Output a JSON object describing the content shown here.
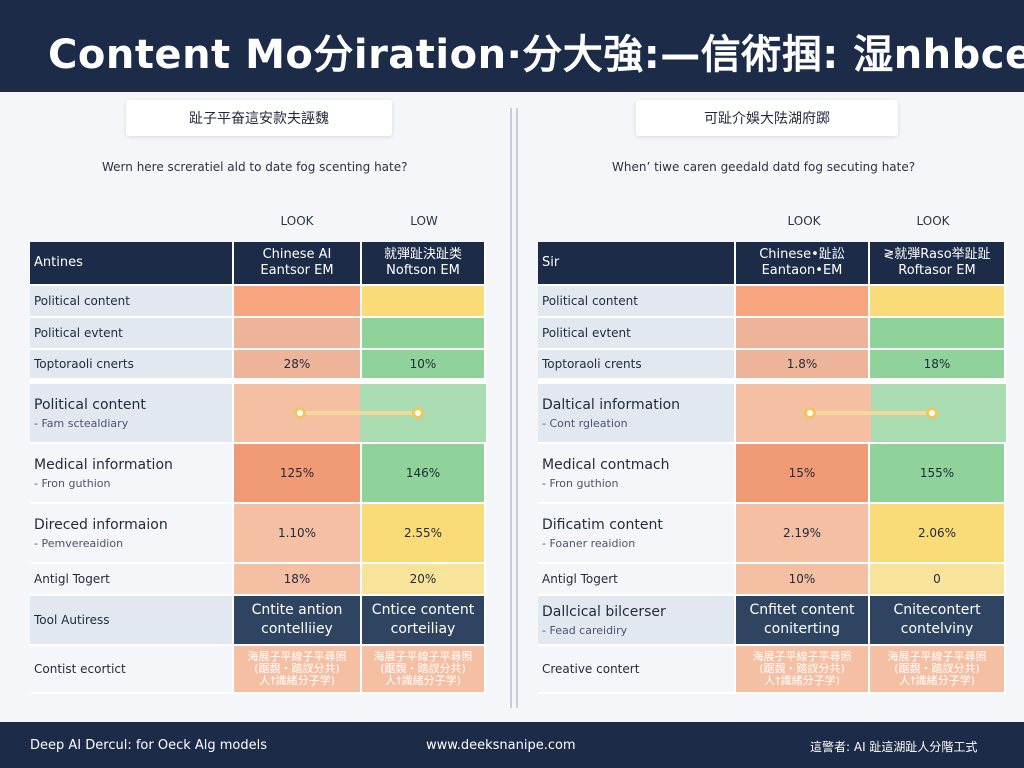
{
  "header": {
    "title": "Content Mo分iration·分大強:—信術掴: 湿nhbce"
  },
  "left": {
    "badge": "趾子平奋這安款夫誣魏",
    "question": "Wern here screratiel ald to date fog scenting hate?",
    "col_headers": [
      "LOOK",
      "LOW"
    ],
    "table_headers": [
      "Antines",
      "Chinese AI\nEantsor EM",
      "就弾趾決趾类\nNoftson EM"
    ],
    "rows": [
      {
        "label": "Political content",
        "sub": "",
        "v1": "",
        "v2": ""
      },
      {
        "label": "Political evtent",
        "sub": "",
        "v1": "",
        "v2": ""
      },
      {
        "label": "Toptoraoli cnerts",
        "sub": "",
        "v1": "28%",
        "v2": "10%"
      },
      {
        "label": "Political content",
        "sub": "- Fam sctealdiary",
        "v1": "",
        "v2": ""
      },
      {
        "label": "Medical information",
        "sub": "- Fron guthion",
        "v1": "125%",
        "v2": "146%"
      },
      {
        "label": "Direced informaion",
        "sub": "- Pemvereaidion",
        "v1": "1.10%",
        "v2": "2.55%"
      },
      {
        "label": "Antigl Togert",
        "sub": "",
        "v1": "18%",
        "v2": "20%"
      },
      {
        "label": "Tool Autiress",
        "sub": "",
        "v1": "Cntite antion\ncontelliiey",
        "v2": "Cntice content\ncorteiliay"
      },
      {
        "label": "Contist ecortict",
        "sub": "",
        "v1": "海展子平線子平尋照\n(踞覣・踏訍分共)\n人†識緒分子学)",
        "v2": "海展子平線子平尋照\n(踞覣・踏訍分共)\n人†識緒分子学)"
      }
    ]
  },
  "right": {
    "badge": "可趾介娛大阹湖府踯",
    "question": "When’ tiwe caren geedald datd fog secuting hate?",
    "col_headers": [
      "LOOK",
      "LOOK"
    ],
    "table_headers": [
      "Sir",
      "Chinese•趾訟\nEantaon•EM",
      "≷就弾Raso举趾趾\nRoftasor EM"
    ],
    "rows": [
      {
        "label": "Political content",
        "sub": "",
        "v1": "",
        "v2": ""
      },
      {
        "label": "Political evtent",
        "sub": "",
        "v1": "",
        "v2": ""
      },
      {
        "label": "Toptoraoli crents",
        "sub": "",
        "v1": "1.8%",
        "v2": "18%"
      },
      {
        "label": "Daltical information",
        "sub": "- Cont rgleation",
        "v1": "",
        "v2": ""
      },
      {
        "label": "Medical contmach",
        "sub": "- Fron guthion",
        "v1": "15%",
        "v2": "155%"
      },
      {
        "label": "Dificatim content",
        "sub": "- Foaner reaidion",
        "v1": "2.19%",
        "v2": "2.06%"
      },
      {
        "label": "Antigl Togert",
        "sub": "",
        "v1": "10%",
        "v2": "0"
      },
      {
        "label": "Dallcical bilcerser",
        "sub": "- Fead careidiry",
        "v1": "Cnfitet content\nconiterting",
        "v2": "Cnitecontert\ncontelviny"
      },
      {
        "label": "Creative contert",
        "sub": "",
        "v1": "海展子平線子平尋照\n(踞覣・踏訍分共)\n人†識緒分子学)",
        "v2": "海展子平線子平尋照\n(踞覣・踏訍分共)\n人†識緒分子学)"
      }
    ]
  },
  "footer": {
    "left": "Deep AI Dercul: for Oeck Alg models",
    "center": "www.deeksnanipe.com",
    "right": "這警者: AI 趾這湖趾人分階工式"
  },
  "colors": {
    "navy": "#1c2b48",
    "dark_cell": "#2f4460",
    "orange": "#f7a47f",
    "peach": "#f5bfa3",
    "salmon": "#f09a76",
    "tan": "#eeb49a",
    "yellow": "#f9dc78",
    "light_yellow": "#f8e39a",
    "green": "#8fd39a",
    "light_green": "#a9dcb1",
    "row_bg": "#e1e8f0"
  }
}
